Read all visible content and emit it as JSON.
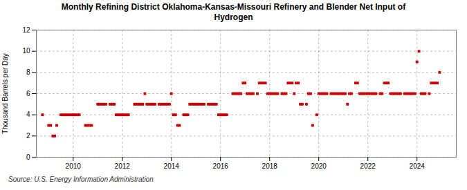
{
  "chart_data": {
    "type": "scatter",
    "title": "Monthly Refining District Oklahoma-Kansas-Missouri Refinery and Blender Net Input of\nHydrogen",
    "y_label": "Thousand Barrels per Day",
    "source": "Source: U.S. Energy Information Administration",
    "color": "#cc0000",
    "marker": "square",
    "grid": true,
    "xlim": [
      2008.5,
      2025.6
    ],
    "xticks": [
      2010,
      2012,
      2014,
      2016,
      2018,
      2020,
      2022,
      2024
    ],
    "ylim": [
      0,
      12
    ],
    "yticks": [
      0,
      2,
      4,
      6,
      8,
      10,
      12
    ],
    "x": [
      2008.75,
      2009.0,
      2009.08,
      2009.17,
      2009.25,
      2009.33,
      2009.5,
      2009.58,
      2009.67,
      2009.75,
      2009.83,
      2009.92,
      2010.0,
      2010.08,
      2010.17,
      2010.25,
      2010.5,
      2010.58,
      2010.67,
      2010.75,
      2011.0,
      2011.08,
      2011.17,
      2011.25,
      2011.33,
      2011.5,
      2011.58,
      2011.67,
      2011.75,
      2011.83,
      2011.92,
      2012.0,
      2012.08,
      2012.17,
      2012.25,
      2012.5,
      2012.58,
      2012.67,
      2012.75,
      2012.83,
      2012.92,
      2013.0,
      2013.08,
      2013.17,
      2013.25,
      2013.33,
      2013.5,
      2013.58,
      2013.67,
      2013.75,
      2013.83,
      2013.92,
      2014.0,
      2014.08,
      2014.17,
      2014.25,
      2014.33,
      2014.5,
      2014.58,
      2014.67,
      2014.75,
      2014.83,
      2014.92,
      2015.0,
      2015.08,
      2015.17,
      2015.25,
      2015.33,
      2015.5,
      2015.58,
      2015.67,
      2015.75,
      2015.83,
      2015.92,
      2016.0,
      2016.08,
      2016.17,
      2016.25,
      2016.5,
      2016.58,
      2016.67,
      2016.75,
      2016.83,
      2016.92,
      2017.0,
      2017.08,
      2017.17,
      2017.25,
      2017.33,
      2017.5,
      2017.58,
      2017.67,
      2017.75,
      2017.83,
      2017.92,
      2018.0,
      2018.08,
      2018.17,
      2018.25,
      2018.33,
      2018.5,
      2018.58,
      2018.67,
      2018.75,
      2018.83,
      2018.92,
      2019.0,
      2019.08,
      2019.17,
      2019.25,
      2019.33,
      2019.5,
      2019.58,
      2019.67,
      2019.75,
      2019.92,
      2020.0,
      2020.08,
      2020.17,
      2020.25,
      2020.33,
      2020.5,
      2020.58,
      2020.67,
      2020.75,
      2020.83,
      2020.92,
      2021.0,
      2021.08,
      2021.17,
      2021.25,
      2021.33,
      2021.5,
      2021.58,
      2021.67,
      2021.75,
      2021.83,
      2021.92,
      2022.0,
      2022.08,
      2022.17,
      2022.25,
      2022.33,
      2022.5,
      2022.58,
      2022.67,
      2022.75,
      2022.83,
      2022.92,
      2023.0,
      2023.08,
      2023.17,
      2023.25,
      2023.33,
      2023.5,
      2023.58,
      2023.67,
      2023.75,
      2023.83,
      2023.92,
      2024.0,
      2024.08,
      2024.17,
      2024.25,
      2024.33,
      2024.5,
      2024.58,
      2024.67,
      2024.75,
      2024.83,
      2024.92
    ],
    "values": [
      4,
      3,
      3,
      2,
      2,
      3,
      4,
      4,
      4,
      4,
      4,
      4,
      4,
      4,
      4,
      4,
      3,
      3,
      3,
      3,
      5,
      5,
      5,
      5,
      5,
      5,
      5,
      5,
      4,
      4,
      4,
      4,
      4,
      4,
      4,
      5,
      5,
      5,
      5,
      5,
      6,
      5,
      5,
      5,
      5,
      5,
      5,
      5,
      5,
      5,
      5,
      5,
      6,
      4,
      4,
      3,
      3,
      4,
      4,
      4,
      5,
      5,
      5,
      5,
      5,
      5,
      5,
      5,
      5,
      5,
      5,
      5,
      5,
      4,
      4,
      4,
      4,
      4,
      6,
      6,
      6,
      6,
      6,
      7,
      7,
      6,
      6,
      6,
      6,
      6,
      7,
      7,
      7,
      7,
      6,
      6,
      6,
      6,
      6,
      6,
      6,
      6,
      6,
      7,
      7,
      7,
      6,
      7,
      7,
      5,
      5,
      5,
      6,
      6,
      3,
      4,
      6,
      6,
      6,
      6,
      6,
      6,
      6,
      6,
      6,
      6,
      6,
      6,
      6,
      5,
      6,
      6,
      7,
      7,
      6,
      6,
      6,
      6,
      6,
      6,
      6,
      6,
      6,
      6,
      6,
      7,
      7,
      7,
      6,
      6,
      6,
      6,
      6,
      6,
      6,
      6,
      6,
      6,
      6,
      6,
      9,
      10,
      6,
      6,
      6,
      6,
      7,
      7,
      7,
      7,
      8
    ]
  }
}
